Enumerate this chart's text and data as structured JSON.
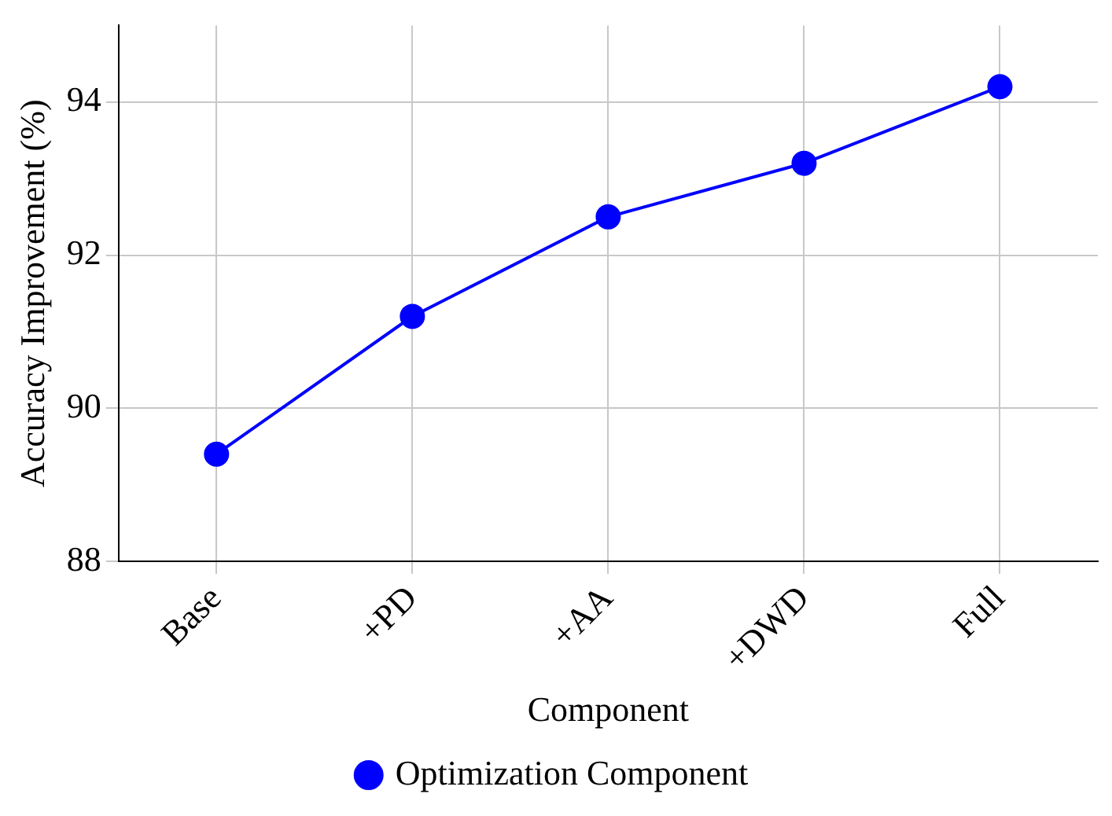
{
  "chart_data": {
    "type": "line",
    "xlabel": "Component",
    "ylabel": "Accuracy Improvement (%)",
    "categories": [
      "Base",
      "+PD",
      "+AA",
      "+DWD",
      "Full"
    ],
    "series": [
      {
        "name": "Optimization Component",
        "color": "#0000ff",
        "values": [
          89.4,
          91.2,
          92.5,
          93.2,
          94.2
        ]
      }
    ],
    "ylim": [
      88,
      95
    ],
    "yticks": [
      88,
      90,
      92,
      94
    ],
    "grid": true,
    "legend": "bottom",
    "marker": "circle",
    "line_style": "solid"
  }
}
